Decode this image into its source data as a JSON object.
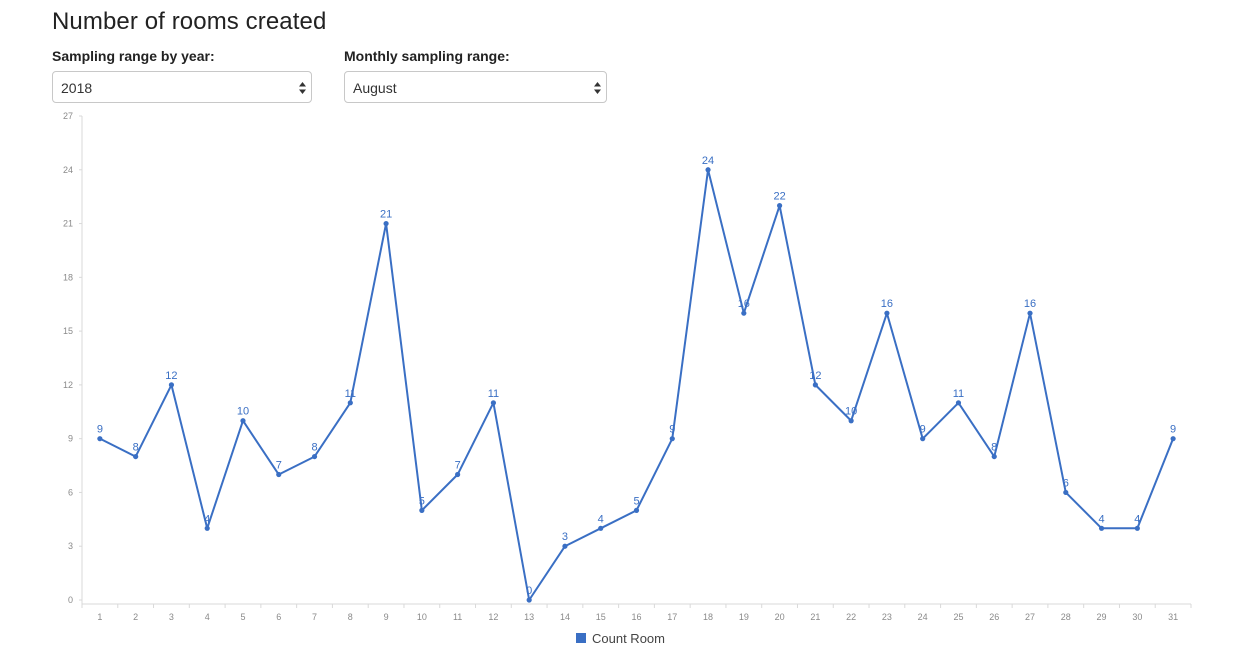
{
  "page": {
    "title": "Number of rooms created"
  },
  "filters": {
    "year": {
      "label": "Sampling range by year:",
      "value": "2018"
    },
    "month": {
      "label": "Monthly sampling range:",
      "value": "August"
    }
  },
  "colors": {
    "series": "#3a6fc4",
    "axis": "#d9d9d9",
    "tick_text": "#8a8a8a"
  },
  "chart_data": {
    "type": "line",
    "title": "",
    "xlabel": "",
    "ylabel": "",
    "x": [
      1,
      2,
      3,
      4,
      5,
      6,
      7,
      8,
      9,
      10,
      11,
      12,
      13,
      14,
      15,
      16,
      17,
      18,
      19,
      20,
      21,
      22,
      23,
      24,
      25,
      26,
      27,
      28,
      29,
      30,
      31
    ],
    "series": [
      {
        "name": "Count Room",
        "values": [
          9,
          8,
          12,
          4,
          10,
          7,
          8,
          11,
          21,
          5,
          7,
          11,
          0,
          3,
          4,
          5,
          9,
          24,
          16,
          22,
          12,
          10,
          16,
          9,
          11,
          8,
          16,
          6,
          4,
          4,
          9
        ]
      }
    ],
    "ylim": [
      0,
      27
    ],
    "yticks": [
      0,
      3,
      6,
      9,
      12,
      15,
      18,
      21,
      24,
      27
    ],
    "grid": false,
    "data_labels": true,
    "legend_position": "bottom-center"
  }
}
